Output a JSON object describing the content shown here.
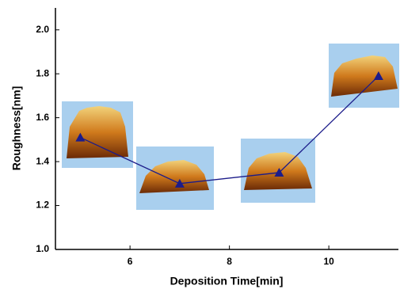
{
  "chart_data": {
    "type": "line",
    "x": [
      5,
      7,
      9,
      11
    ],
    "series": [
      {
        "color": "#1c1c8a",
        "values": [
          1.51,
          1.3,
          1.35,
          1.79
        ]
      }
    ],
    "x_label": "Deposition Time[min]",
    "y_label": "Roughness[nm]",
    "xlim": [
      4.5,
      11.4
    ],
    "xticks": [
      6,
      8,
      10
    ],
    "ylim": [
      1.0,
      2.1
    ],
    "yticks": [
      {
        "value": 1.0,
        "label": "1.0"
      },
      1.2,
      1.4,
      1.6,
      1.8,
      {
        "value": 2.0,
        "label": "2.0"
      }
    ]
  }
}
